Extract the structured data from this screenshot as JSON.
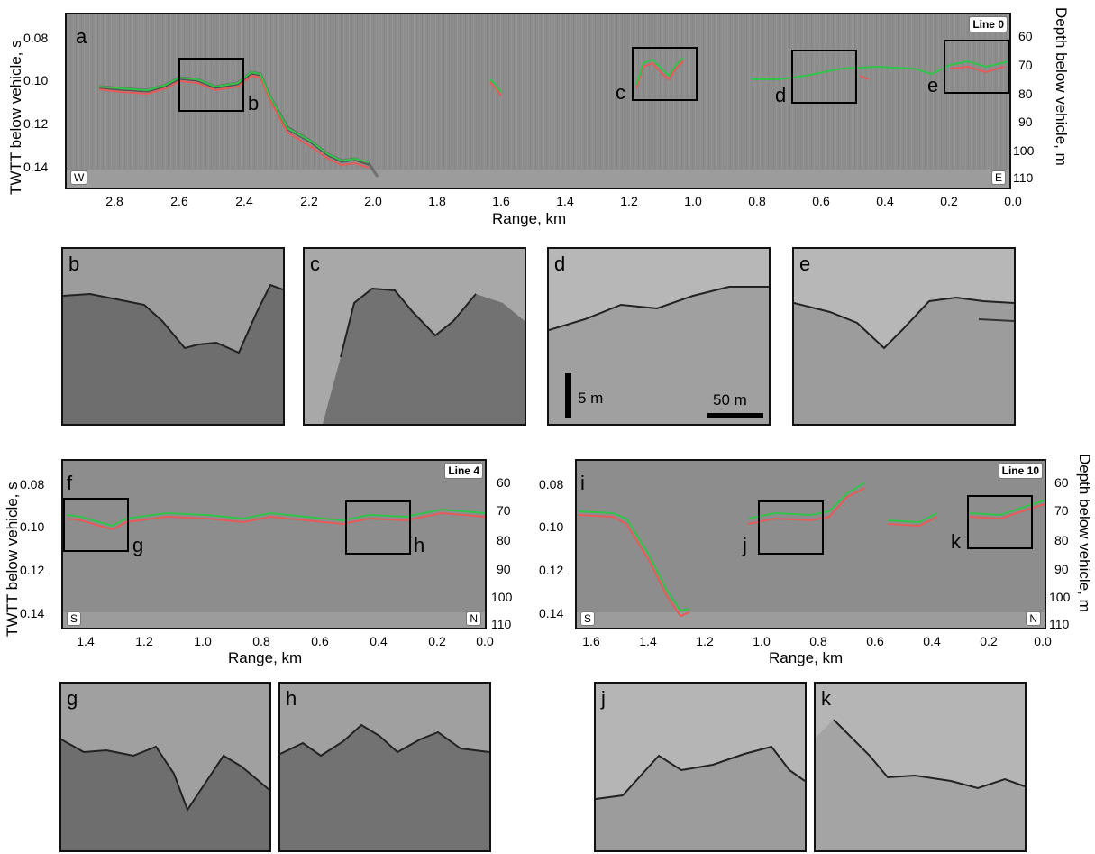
{
  "figure": {
    "panels": {
      "a": {
        "label": "a",
        "line": "Line 0",
        "dir_left": "W",
        "dir_right": "E",
        "yticks": [
          "0.08",
          "0.10",
          "0.12",
          "0.14"
        ],
        "rticks": [
          "60",
          "70",
          "80",
          "90",
          "100",
          "110"
        ],
        "xticks": [
          "2.8",
          "2.6",
          "2.4",
          "2.2",
          "2.0",
          "1.8",
          "1.6",
          "1.4",
          "1.2",
          "1.0",
          "0.8",
          "0.6",
          "0.4",
          "0.2",
          "0.0"
        ],
        "xlabel": "Range, km",
        "ylabel": "TWTT below vehicle, s",
        "rlabel": "Depth below vehicle, m",
        "boxes": [
          "b",
          "c",
          "d",
          "e"
        ]
      },
      "f": {
        "label": "f",
        "line": "Line 4",
        "dir_left": "S",
        "dir_right": "N",
        "yticks": [
          "0.08",
          "0.10",
          "0.12",
          "0.14"
        ],
        "rticks": [
          "60",
          "70",
          "80",
          "90",
          "100",
          "110"
        ],
        "xticks": [
          "1.4",
          "1.2",
          "1.0",
          "0.8",
          "0.6",
          "0.4",
          "0.2",
          "0.0"
        ],
        "xlabel": "Range, km",
        "ylabel": "TWTT below vehicle, s",
        "boxes": [
          "g",
          "h"
        ]
      },
      "i": {
        "label": "i",
        "line": "Line 10",
        "dir_left": "S",
        "dir_right": "N",
        "yticks": [
          "0.08",
          "0.10",
          "0.12",
          "0.14"
        ],
        "rticks": [
          "60",
          "70",
          "80",
          "90",
          "100",
          "110"
        ],
        "xticks": [
          "1.6",
          "1.4",
          "1.2",
          "1.0",
          "0.8",
          "0.6",
          "0.4",
          "0.2",
          "0.0"
        ],
        "xlabel": "Range, km",
        "rlabel": "Depth below vehicle, m",
        "boxes": [
          "j",
          "k"
        ]
      }
    },
    "insets": {
      "b": "b",
      "c": "c",
      "d": "d",
      "e": "e",
      "g": "g",
      "h": "h",
      "j": "j",
      "k": "k"
    },
    "scale_bars": {
      "vertical": "5 m",
      "horizontal": "50 m"
    }
  }
}
